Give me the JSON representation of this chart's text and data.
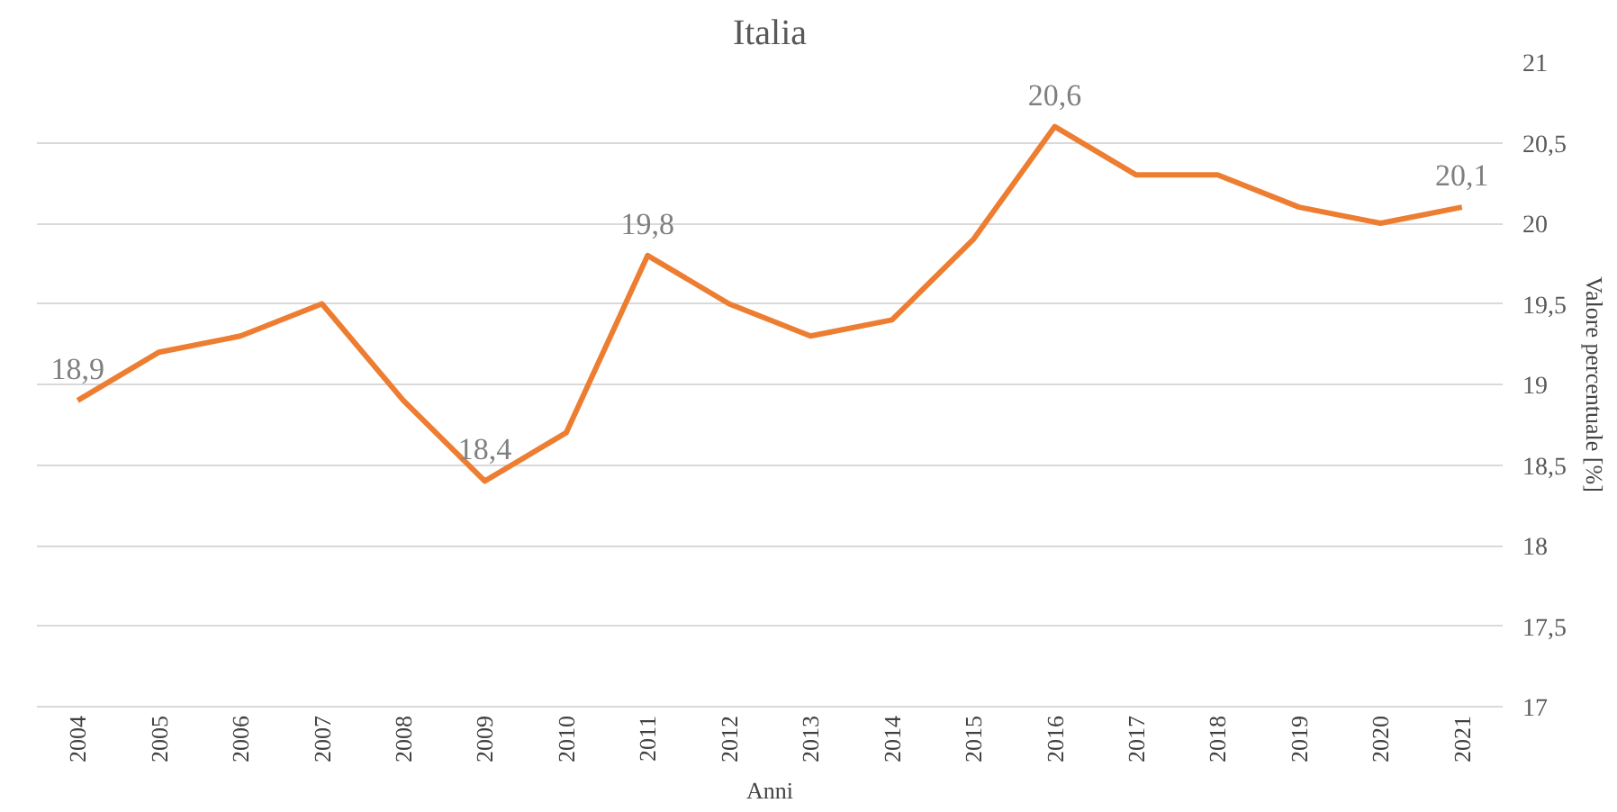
{
  "chart_data": {
    "type": "line",
    "title": "Italia",
    "xlabel": "Anni",
    "ylabel": "Valore percentuale [%]",
    "categories": [
      "2004",
      "2005",
      "2006",
      "2007",
      "2008",
      "2009",
      "2010",
      "2011",
      "2012",
      "2013",
      "2014",
      "2015",
      "2016",
      "2017",
      "2018",
      "2019",
      "2020",
      "2021"
    ],
    "series": [
      {
        "color": "#ed7d31",
        "values": [
          18.9,
          19.2,
          19.3,
          19.5,
          18.9,
          18.4,
          18.7,
          19.8,
          19.5,
          19.3,
          19.4,
          19.9,
          20.6,
          20.3,
          20.3,
          20.1,
          20.0,
          20.1
        ],
        "value_labels": [
          "18,9",
          null,
          null,
          null,
          null,
          "18,4",
          null,
          "19,8",
          null,
          null,
          null,
          null,
          "20,6",
          null,
          null,
          null,
          null,
          "20,1"
        ]
      }
    ],
    "ylim": [
      17,
      21
    ],
    "yticks": [
      17,
      {
        "value": 17.5,
        "label": "17,5"
      },
      18,
      {
        "value": 18.5,
        "label": "18,5"
      },
      19,
      {
        "value": 19.5,
        "label": "19,5"
      },
      20,
      {
        "value": 20.5,
        "label": "20,5"
      },
      21
    ],
    "grid": "y",
    "marker": "none",
    "line_style": "solid"
  }
}
